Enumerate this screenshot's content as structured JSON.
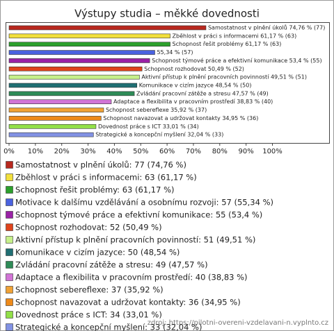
{
  "chart_data": {
    "type": "bar",
    "orientation": "horizontal",
    "title": "Výstupy studia – měkké dovednosti",
    "categories": [
      "Samostatnost v plnění úkolů",
      "Zběhlost v práci s informacemi",
      "Schopnost řešit problémy",
      "Motivace k dalšímu vzdělávání a osobnímu rozvoji",
      "Schopnost týmové práce a efektivní komunikace",
      "Schopnost rozhodovat",
      "Aktivní přístup k plnění pracovních povinností",
      "Komunikace v cizím jazyce",
      "Zvládání pracovní zátěže a stresu",
      "Adaptace a flexibilita v pracovním prostředí",
      "Schopnost sebereflexe",
      "Schopnost navazovat a udržovat kontakty",
      "Dovednost práce s ICT",
      "Strategické a koncepční myšlení"
    ],
    "values": [
      74.76,
      61.17,
      61.17,
      55.34,
      53.4,
      50.49,
      49.51,
      48.54,
      47.57,
      38.83,
      35.92,
      34.95,
      33.01,
      32.04
    ],
    "value_labels": [
      "Samostatnost v plnění úkolů 74,76 % (77)",
      "Zběhlost v práci s informacemi 61,17 % (63)",
      "Schopnost řešit problémy 61,17 % (63)",
      "55,34 % (57)",
      "Schopnost týmové práce a efektivní komunikace 53,4 % (55)",
      "Schopnost rozhodovat 50,49 % (52)",
      "Aktivní přístup k plnění pracovních povinností 49,51 % (51)",
      "Komunikace v cizím jazyce 48,54 % (50)",
      "Zvládání pracovní zátěže a stresu 47,57 % (49)",
      "Adaptace a flexibilita v pracovním prostředí 38,83 % (40)",
      "Schopnost sebereflexe 35,92 % (37)",
      "Schopnost navazovat a udržovat kontakty 34,95 % (36)",
      "Dovednost práce s ICT 33,01 % (34)",
      "Strategické a koncepční myšlení 32,04 % (33)"
    ],
    "legend_labels": [
      "Samostatnost v plnění úkolů: 77 (74,76 %)",
      "Zběhlost v práci s informacemi: 63 (61,17 %)",
      "Schopnost řešit problémy: 63 (61,17 %)",
      "Motivace k dalšímu vzdělávání a osobnímu rozvoji: 57 (55,34 %)",
      "Schopnost týmové práce a efektivní komunikace: 55 (53,4 %)",
      "Schopnost rozhodovat: 52 (50,49 %)",
      "Aktivní přístup k plnění pracovních povinností: 51 (49,51 %)",
      "Komunikace v cizím jazyce: 50 (48,54 %)",
      "Zvládání pracovní zátěže a stresu: 49 (47,57 %)",
      "Adaptace a flexibilita v pracovním prostředí: 40 (38,83 %)",
      "Schopnost sebereflexe: 37 (35,92 %)",
      "Schopnost navazovat a udržovat kontakty: 36 (34,95 %)",
      "Dovednost práce s ICT: 34 (33,01 %)",
      "Strategické a koncepční myšlení: 33 (32,04 %)"
    ],
    "colors": [
      "#b8281e",
      "#f2e03c",
      "#2ca02c",
      "#4a62e0",
      "#9a22a6",
      "#e0441c",
      "#c6f08a",
      "#1f6f73",
      "#2e8b57",
      "#d274d6",
      "#f0a236",
      "#ee8a1a",
      "#92e048",
      "#8292e4"
    ],
    "xlim": [
      0,
      121
    ],
    "xticks": [
      {
        "value": 0,
        "label": "0%"
      },
      {
        "value": 10,
        "label": "10%"
      },
      {
        "value": 20,
        "label": "20%"
      },
      {
        "value": 30,
        "label": "30%"
      },
      {
        "value": 40,
        "label": "40%"
      },
      {
        "value": 50,
        "label": "50%"
      },
      {
        "value": 60,
        "label": "60%"
      },
      {
        "value": 70,
        "label": "70%"
      },
      {
        "value": 80,
        "label": "80%"
      },
      {
        "value": 90,
        "label": "90%"
      },
      {
        "value": 100,
        "label": "100%"
      }
    ],
    "source": "zdroj: https://pilotni-overeni-vzdelavani-n.vyplnto.cz"
  }
}
